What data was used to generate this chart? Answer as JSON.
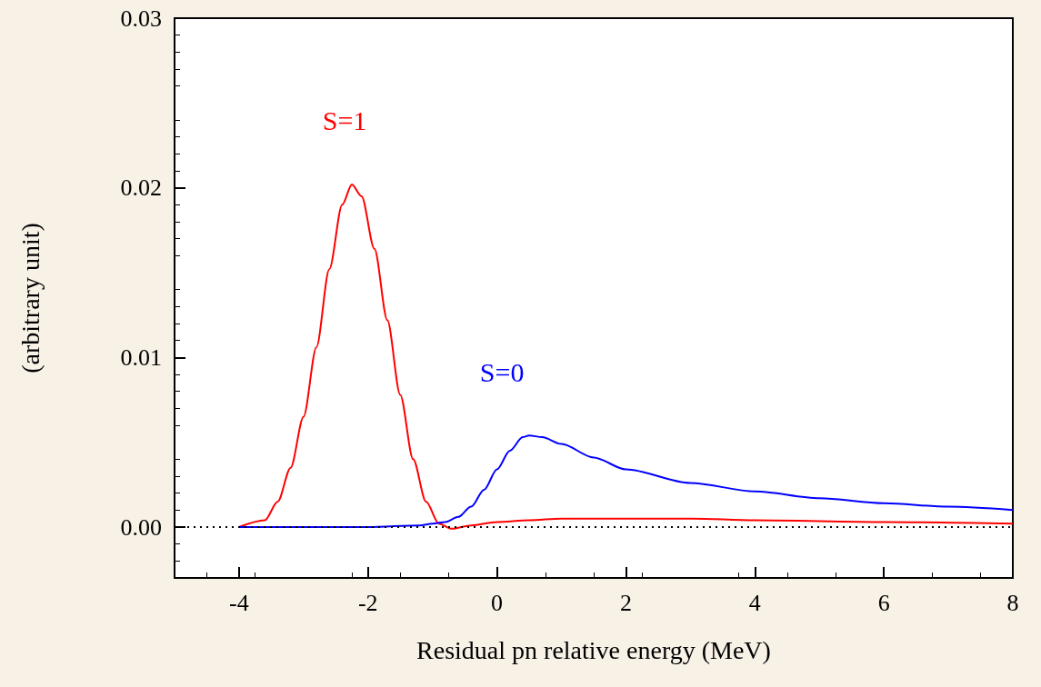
{
  "chart_data": {
    "type": "line",
    "xlabel": "Residual pn relative energy (MeV)",
    "ylabel": "(arbitrary unit)",
    "xlim": [
      -5,
      8
    ],
    "xticks": [
      -4,
      -2,
      0,
      2,
      4,
      6,
      8
    ],
    "ylim": [
      -0.003,
      0.03
    ],
    "yticks": [
      {
        "value": 0,
        "label": "0.00"
      },
      0.01,
      0.02,
      0.03
    ],
    "grid": false,
    "legend": false,
    "marker": "none",
    "line_style": "solid",
    "ref_lines": [
      {
        "axis": "y",
        "value": 0,
        "color": "#000000",
        "line_style": "dotted"
      }
    ],
    "series": [
      {
        "name": "S=1",
        "color": "#ff0000",
        "x": [
          -4,
          -3.6,
          -3.4,
          -3.2,
          -3.0,
          -2.8,
          -2.6,
          -2.4,
          -2.25,
          -2.1,
          -1.9,
          -1.7,
          -1.5,
          -1.3,
          -1.1,
          -0.9,
          -0.7,
          -0.4,
          0,
          0.5,
          1,
          2,
          3,
          4,
          6,
          8
        ],
        "values": [
          0,
          0.0004,
          0.0015,
          0.0035,
          0.0065,
          0.0106,
          0.0152,
          0.019,
          0.0202,
          0.0195,
          0.0164,
          0.0122,
          0.0078,
          0.004,
          0.0015,
          0.0002,
          -0.0001,
          0.0001,
          0.0003,
          0.0004,
          0.0005,
          0.0005,
          0.0005,
          0.0004,
          0.0003,
          0.0002
        ]
      },
      {
        "name": "S=0",
        "color": "#0000ff",
        "x": [
          -4,
          -2,
          -1.2,
          -1,
          -0.8,
          -0.6,
          -0.4,
          -0.2,
          0,
          0.2,
          0.4,
          0.5,
          0.7,
          1,
          1.5,
          2,
          3,
          4,
          5,
          6,
          7,
          8
        ],
        "values": [
          0,
          0,
          0.0001,
          0.0002,
          0.0003,
          0.0006,
          0.0012,
          0.0022,
          0.0034,
          0.0045,
          0.0053,
          0.0054,
          0.0053,
          0.0049,
          0.0041,
          0.0034,
          0.0026,
          0.0021,
          0.0017,
          0.0014,
          0.0012,
          0.001
        ]
      }
    ]
  }
}
